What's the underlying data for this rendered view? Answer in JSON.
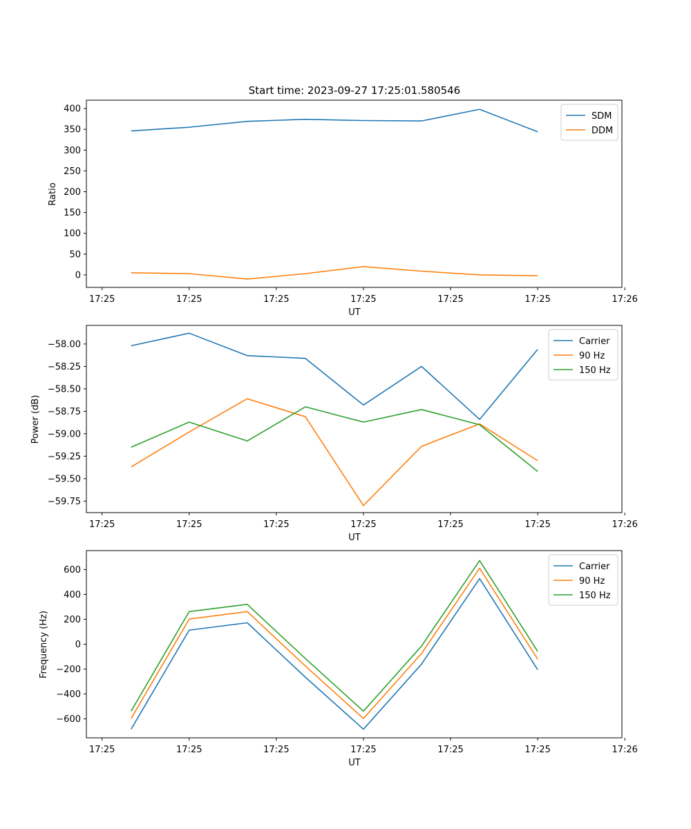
{
  "figure_title": "Start time: 2023-09-27 17:25:01.580546",
  "colors": {
    "blue": "#1f77b4",
    "orange": "#ff7f0e",
    "green": "#2ca02c"
  },
  "chart_data": [
    {
      "type": "line",
      "title": "Start time: 2023-09-27 17:25:01.580546",
      "xlabel": "UT",
      "ylabel": "Ratio",
      "x": [
        1,
        2,
        3,
        4,
        5,
        6,
        7,
        8
      ],
      "xlim": [
        0.23,
        9.45
      ],
      "xticks": [
        0.5,
        2,
        3.5,
        5,
        6.5,
        8,
        9.5
      ],
      "xtick_labels": [
        "17:25",
        "17:25",
        "17:25",
        "17:25",
        "17:25",
        "17:25",
        "17:26"
      ],
      "ylim": [
        -30,
        420
      ],
      "yticks": [
        0,
        50,
        100,
        150,
        200,
        250,
        300,
        350,
        400
      ],
      "ytick_labels": [
        "0",
        "50",
        "100",
        "150",
        "200",
        "250",
        "300",
        "350",
        "400"
      ],
      "legend_position": "top-right",
      "series": [
        {
          "name": "SDM",
          "color": "#1f77b4",
          "values": [
            346,
            355,
            369,
            374,
            371,
            370,
            398,
            344
          ]
        },
        {
          "name": "DDM",
          "color": "#ff7f0e",
          "values": [
            5,
            3,
            -10,
            3,
            20,
            9,
            0,
            -2
          ]
        }
      ]
    },
    {
      "type": "line",
      "title": "",
      "xlabel": "UT",
      "ylabel": "Power (dB)",
      "x": [
        1,
        2,
        3,
        4,
        5,
        6,
        7,
        8
      ],
      "xlim": [
        0.23,
        9.45
      ],
      "xticks": [
        0.5,
        2,
        3.5,
        5,
        6.5,
        8,
        9.5
      ],
      "xtick_labels": [
        "17:25",
        "17:25",
        "17:25",
        "17:25",
        "17:25",
        "17:25",
        "17:26"
      ],
      "ylim": [
        -59.878,
        -57.793
      ],
      "yticks": [
        -58.0,
        -58.25,
        -58.5,
        -58.75,
        -59.0,
        -59.25,
        -59.5,
        -59.75
      ],
      "ytick_labels": [
        "−58.00",
        "−58.25",
        "−58.50",
        "−58.75",
        "−59.00",
        "−59.25",
        "−59.50",
        "−59.75"
      ],
      "legend_position": "top-right",
      "series": [
        {
          "name": "Carrier",
          "color": "#1f77b4",
          "values": [
            -58.02,
            -57.88,
            -58.13,
            -58.16,
            -58.68,
            -58.25,
            -58.84,
            -58.06
          ]
        },
        {
          "name": "90 Hz",
          "color": "#ff7f0e",
          "values": [
            -59.37,
            -58.98,
            -58.61,
            -58.81,
            -59.8,
            -59.14,
            -58.89,
            -59.3
          ]
        },
        {
          "name": "150 Hz",
          "color": "#2ca02c",
          "values": [
            -59.15,
            -58.87,
            -59.08,
            -58.7,
            -58.87,
            -58.73,
            -58.9,
            -59.42
          ]
        }
      ]
    },
    {
      "type": "line",
      "title": "",
      "xlabel": "UT",
      "ylabel": "Frequency (Hz)",
      "x": [
        1,
        2,
        3,
        4,
        5,
        6,
        7,
        8
      ],
      "xlim": [
        0.23,
        9.45
      ],
      "xticks": [
        0.5,
        2,
        3.5,
        5,
        6.5,
        8,
        9.5
      ],
      "xtick_labels": [
        "17:25",
        "17:25",
        "17:25",
        "17:25",
        "17:25",
        "17:25",
        "17:26"
      ],
      "ylim": [
        -752,
        752
      ],
      "yticks": [
        -600,
        -400,
        -200,
        0,
        200,
        400,
        600
      ],
      "ytick_labels": [
        "−600",
        "−400",
        "−200",
        "0",
        "200",
        "400",
        "600"
      ],
      "legend_position": "top-right",
      "series": [
        {
          "name": "Carrier",
          "color": "#1f77b4",
          "values": [
            -683,
            113,
            172,
            -265,
            -683,
            -160,
            527,
            -205
          ]
        },
        {
          "name": "90 Hz",
          "color": "#ff7f0e",
          "values": [
            -597,
            202,
            262,
            -175,
            -597,
            -75,
            610,
            -120
          ]
        },
        {
          "name": "150 Hz",
          "color": "#2ca02c",
          "values": [
            -538,
            262,
            320,
            -115,
            -538,
            -15,
            672,
            -58
          ]
        }
      ]
    }
  ]
}
